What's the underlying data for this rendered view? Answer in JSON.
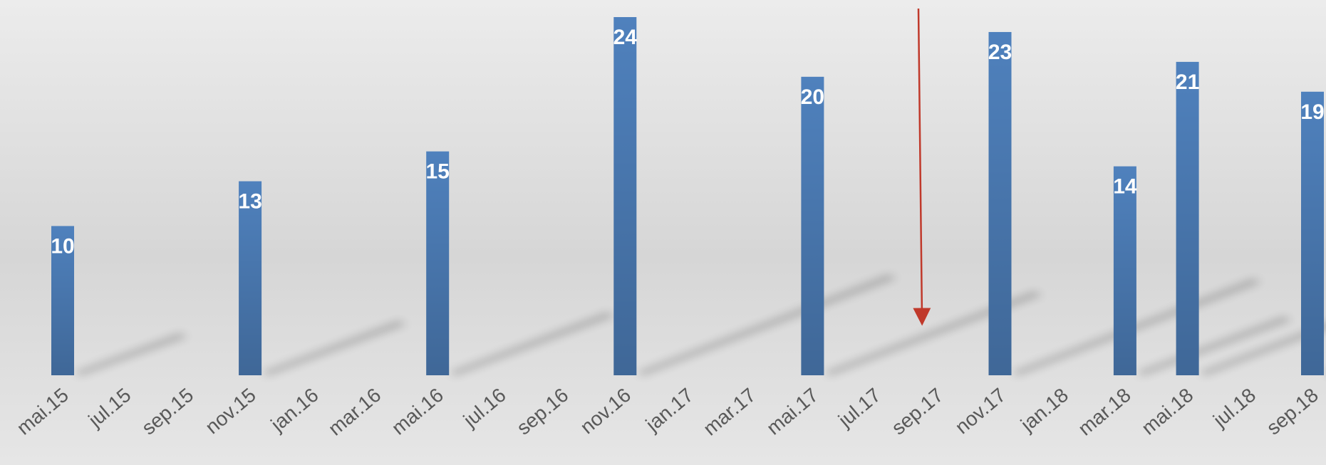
{
  "chart_data": {
    "type": "bar",
    "categories": [
      "mai.15",
      null,
      "jul.15",
      null,
      "sep.15",
      null,
      "nov.15",
      null,
      "jan.16",
      null,
      "mar.16",
      null,
      "mai.16",
      null,
      "jul.16",
      null,
      "sep.16",
      null,
      "nov.16",
      null,
      "jan.17",
      null,
      "mar.17",
      null,
      "mai.17",
      null,
      "jul.17",
      null,
      "sep.17",
      null,
      "nov.17",
      null,
      "jan.18",
      null,
      "mar.18",
      null,
      "mai.18",
      null,
      "jul.18",
      null,
      "sep.18"
    ],
    "values": [
      10,
      null,
      null,
      null,
      null,
      null,
      13,
      null,
      null,
      null,
      null,
      null,
      15,
      null,
      null,
      null,
      null,
      null,
      24,
      null,
      null,
      null,
      null,
      null,
      20,
      null,
      null,
      null,
      null,
      null,
      23,
      null,
      null,
      null,
      14,
      null,
      21,
      null,
      null,
      null,
      19
    ],
    "color": "#4f81bd"
  }
}
